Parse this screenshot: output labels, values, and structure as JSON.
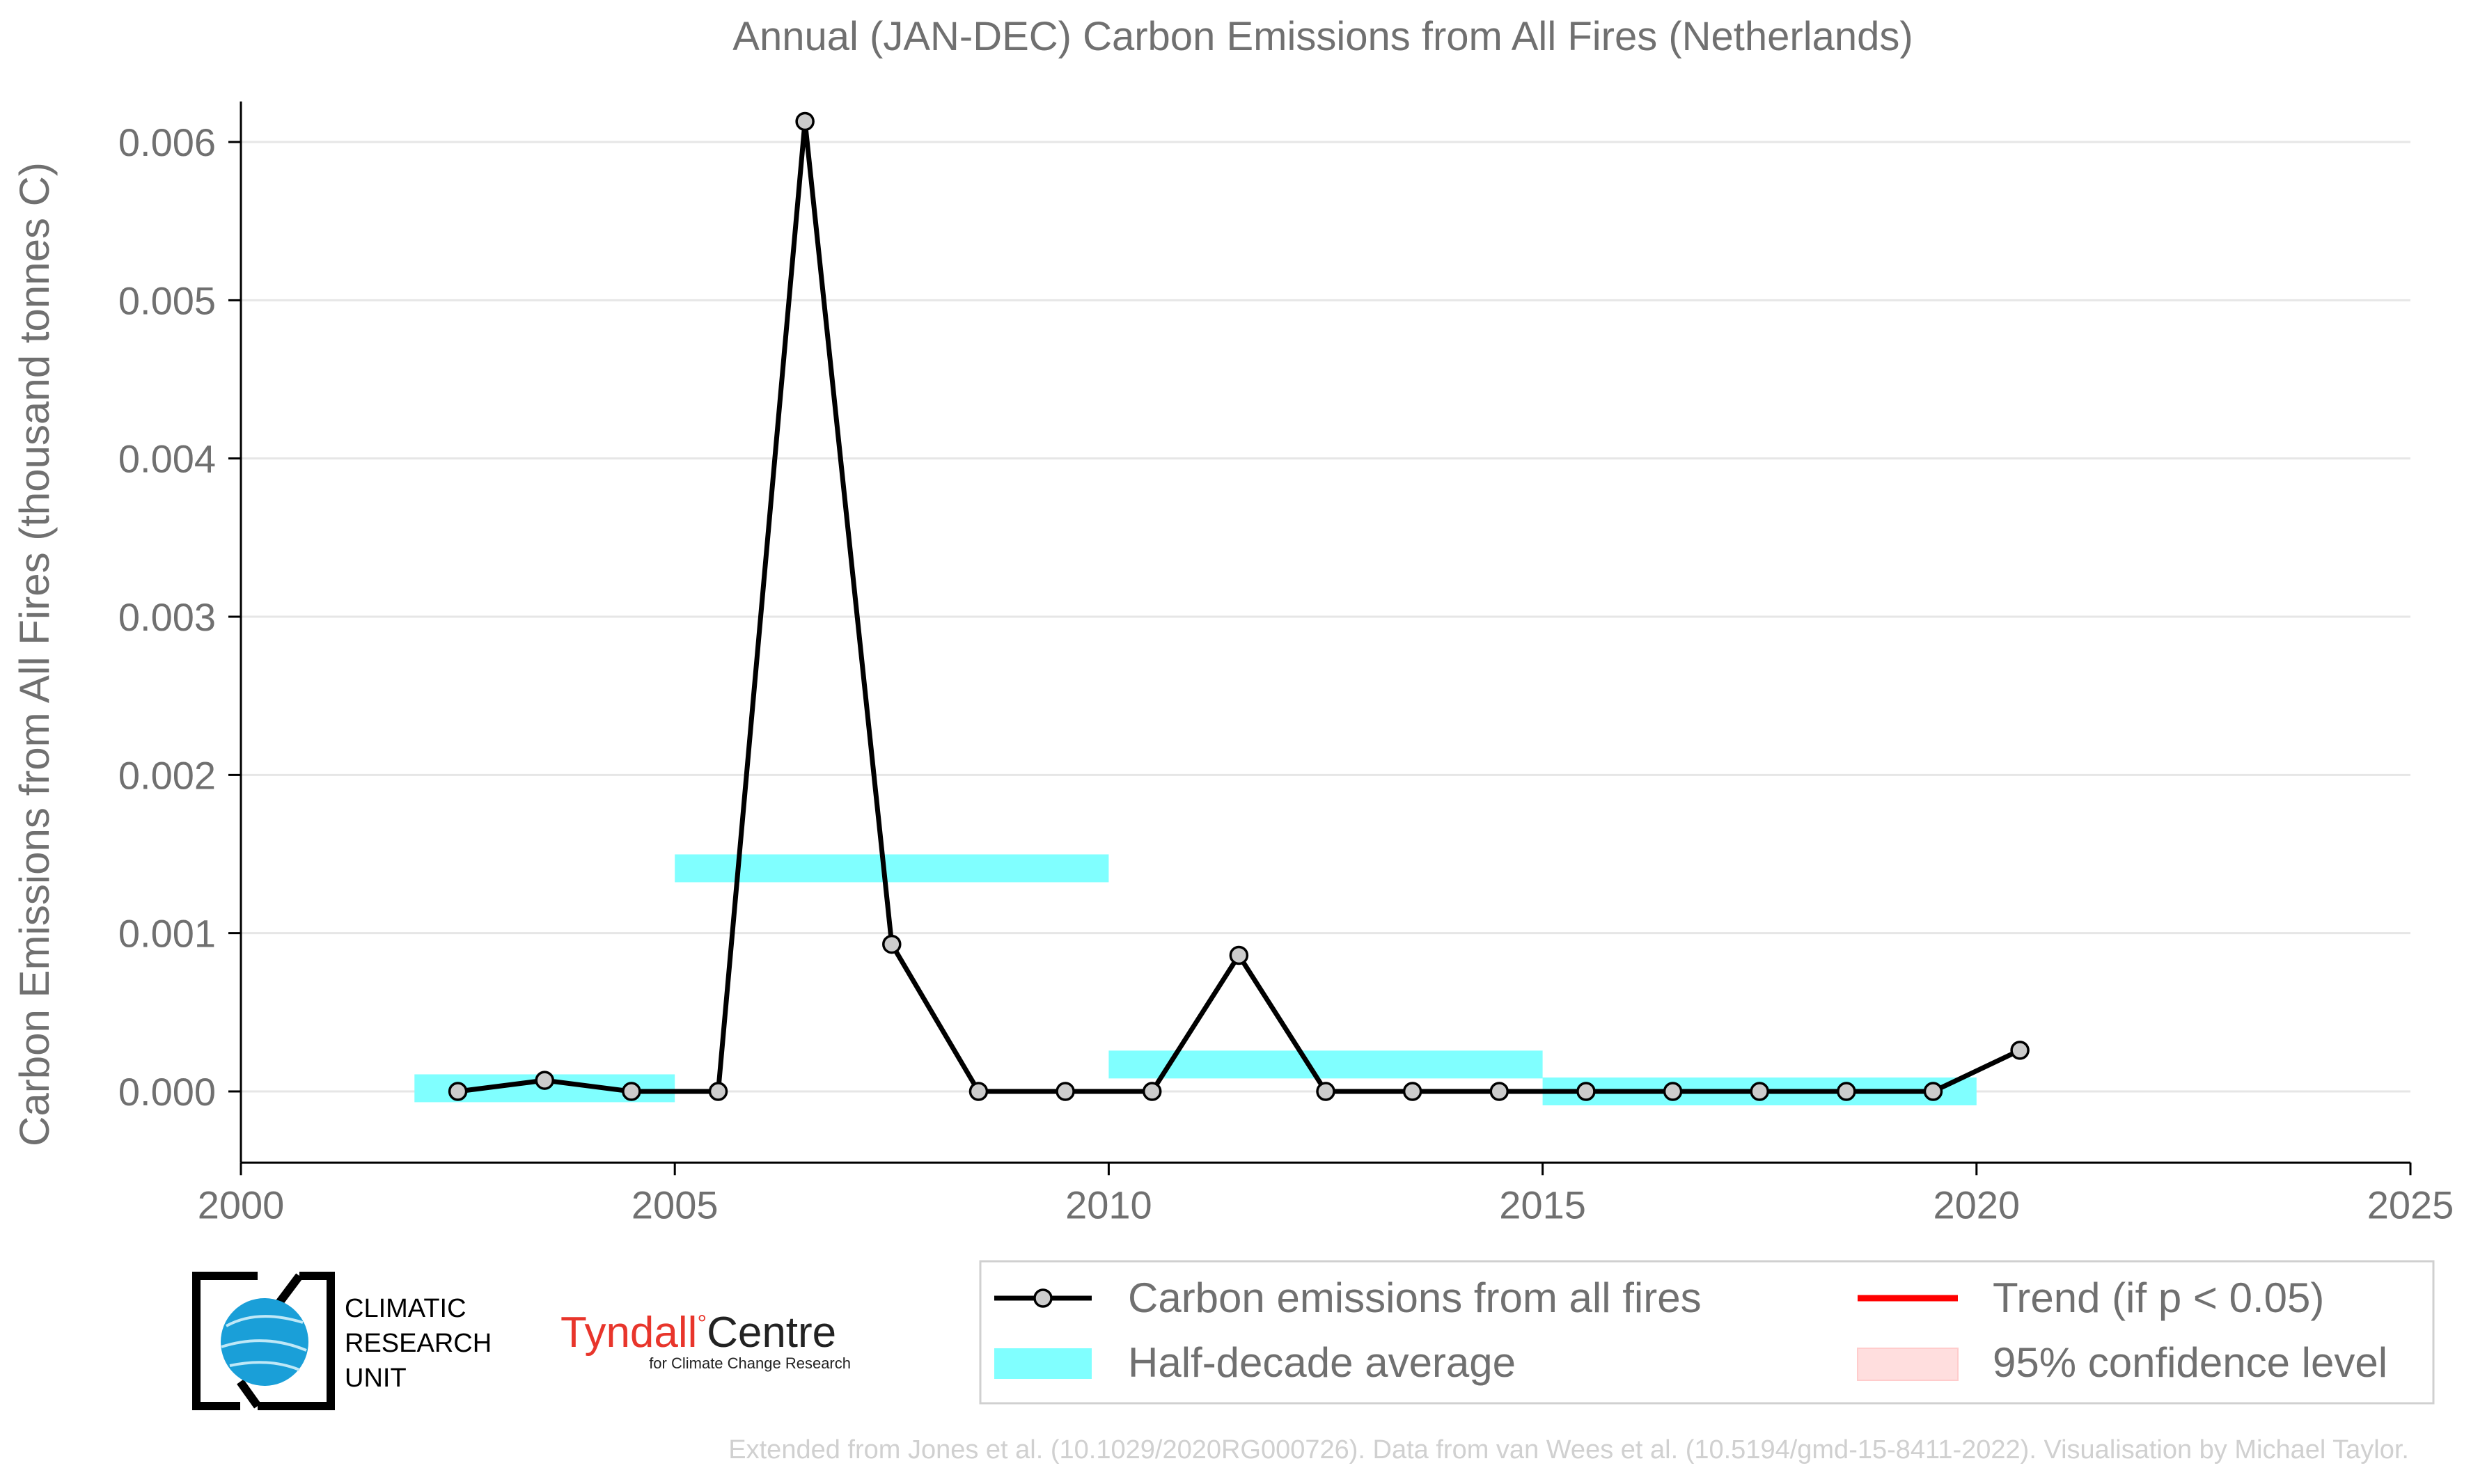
{
  "chart_data": {
    "type": "line",
    "title": "Annual (JAN-DEC) Carbon Emissions from All Fires (Netherlands)",
    "xlabel": "",
    "ylabel": "Carbon Emissions from All Fires (thousand tonnes C)",
    "xlim": [
      2000,
      2025
    ],
    "ylim": [
      -0.00045,
      0.0063
    ],
    "x_ticks": [
      2000,
      2005,
      2010,
      2015,
      2020,
      2025
    ],
    "y_ticks": [
      0.0,
      0.001,
      0.002,
      0.003,
      0.004,
      0.005,
      0.006
    ],
    "y_tick_labels": [
      "0.000",
      "0.001",
      "0.002",
      "0.003",
      "0.004",
      "0.005",
      "0.006"
    ],
    "grid": "horizontal",
    "series": [
      {
        "name": "Carbon emissions from all fires",
        "color": "#000000",
        "marker_fill": "#cccccc",
        "x": [
          2002.5,
          2003.5,
          2004.5,
          2005.5,
          2006.5,
          2007.5,
          2008.5,
          2009.5,
          2010.5,
          2011.5,
          2012.5,
          2013.5,
          2014.5,
          2015.5,
          2016.5,
          2017.5,
          2018.5,
          2019.5,
          2020.5
        ],
        "y": [
          0.0,
          7e-05,
          0.0,
          0.0,
          0.00613,
          0.00093,
          0.0,
          0.0,
          0.0,
          0.00086,
          0.0,
          0.0,
          0.0,
          0.0,
          0.0,
          0.0,
          0.0,
          0.0,
          0.00026
        ]
      }
    ],
    "half_decade_average": {
      "name": "Half-decade average",
      "color": "#80ffff",
      "bars": [
        {
          "x0": 2002,
          "x1": 2005,
          "y": 2e-05
        },
        {
          "x0": 2005,
          "x1": 2010,
          "y": 0.00141
        },
        {
          "x0": 2010,
          "x1": 2015,
          "y": 0.00017
        },
        {
          "x0": 2015,
          "x1": 2020,
          "y": 0.0
        }
      ]
    },
    "legend": {
      "placement": "bottom-right",
      "entries": [
        {
          "label": "Carbon emissions from all fires",
          "color": "#000000"
        },
        {
          "label": "Trend (if p < 0.05)",
          "color": "#ff0000"
        },
        {
          "label": "Half-decade average",
          "color": "#80ffff"
        },
        {
          "label": "95% confidence level",
          "color": "#ffdede"
        }
      ]
    }
  },
  "logos": {
    "cru": {
      "lines": [
        "CLIMATIC",
        "RESEARCH",
        "UNIT"
      ]
    },
    "tyndall": {
      "main": "Tyndall",
      "degree": "°",
      "centre": "Centre",
      "sub": "for Climate Change Research"
    }
  },
  "credit": "Extended from Jones et al. (10.1029/2020RG000726). Data from van Wees et al. (10.5194/gmd-15-8411-2022). Visualisation by Michael Taylor."
}
